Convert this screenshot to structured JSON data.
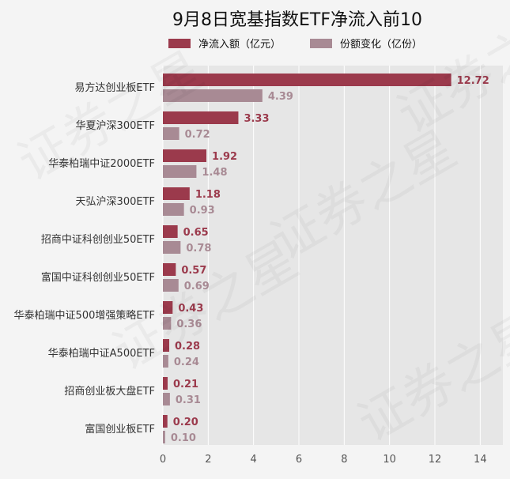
{
  "chart_data": {
    "type": "bar",
    "orientation": "horizontal",
    "title": "9月8日宽基指数ETF净流入前10",
    "categories": [
      "易方达创业板ETF",
      "华夏沪深300ETF",
      "华泰柏瑞中证2000ETF",
      "天弘沪深300ETF",
      "招商中证科创创业50ETF",
      "富国中证科创创业50ETF",
      "华泰柏瑞中证500增强策略ETF",
      "华泰柏瑞中证A500ETF",
      "招商创业板大盘ETF",
      "富国创业板ETF"
    ],
    "series": [
      {
        "name": "净流入额（亿元）",
        "color": "#9b3a4c",
        "values": [
          12.72,
          3.33,
          1.92,
          1.18,
          0.65,
          0.57,
          0.43,
          0.28,
          0.21,
          0.2
        ]
      },
      {
        "name": "份额变化（亿份）",
        "color": "#a88a94",
        "values": [
          4.39,
          0.72,
          1.48,
          0.93,
          0.78,
          0.69,
          0.36,
          0.24,
          0.31,
          0.1
        ]
      }
    ],
    "value_labels": [
      [
        "12.72",
        "3.33",
        "1.92",
        "1.18",
        "0.65",
        "0.57",
        "0.43",
        "0.28",
        "0.21",
        "0.20"
      ],
      [
        "4.39",
        "0.72",
        "1.48",
        "0.93",
        "0.78",
        "0.69",
        "0.36",
        "0.24",
        "0.31",
        "0.10"
      ]
    ],
    "xticks": [
      "0",
      "2",
      "4",
      "6",
      "8",
      "10",
      "12",
      "14"
    ],
    "xlim": [
      0,
      15
    ],
    "grid": true,
    "legend_position": "top-center",
    "plot_background": "#e6e6e6"
  },
  "watermark": {
    "text": "证券之星"
  }
}
